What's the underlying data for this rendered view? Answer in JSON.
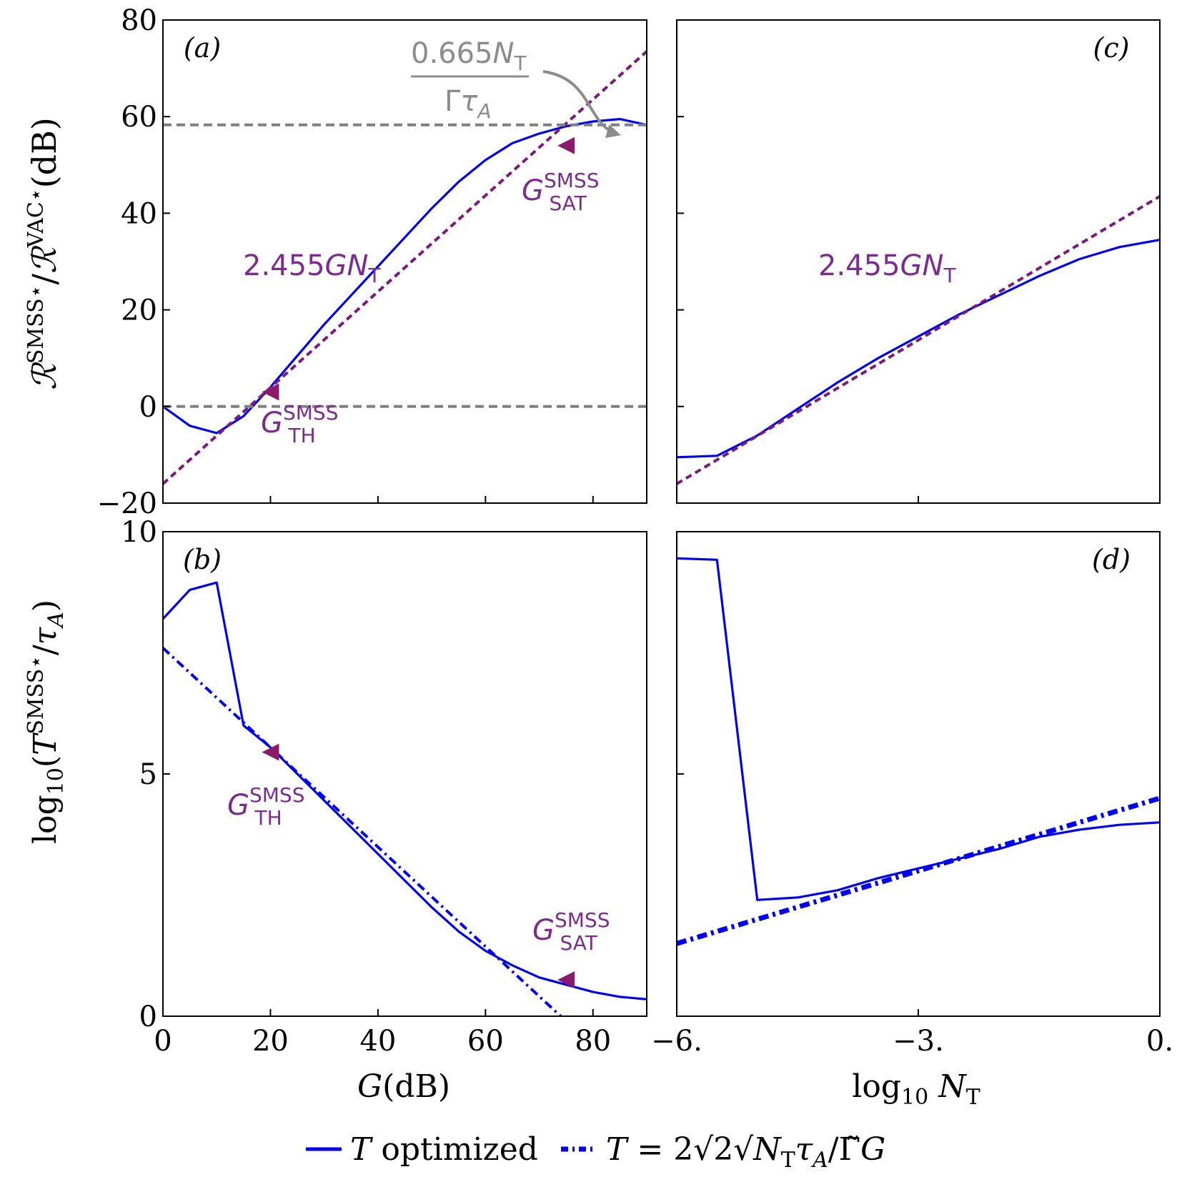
{
  "chart_data": [
    {
      "panel": "a",
      "type": "line",
      "tag": "(a)",
      "xlim": [
        0,
        90
      ],
      "ylim": [
        -20,
        80
      ],
      "yticks": [
        "-20",
        "0",
        "20",
        "40",
        "60",
        "80"
      ],
      "ylabel": "R^SMSS*/R^VAC*(dB)",
      "series": [
        {
          "name": "T optimized",
          "style": "solid-blue",
          "x": [
            0,
            5,
            10,
            15,
            20,
            25,
            30,
            35,
            40,
            45,
            50,
            55,
            60,
            65,
            70,
            75,
            80,
            85,
            90
          ],
          "y": [
            0,
            -4,
            -5.5,
            -2,
            4,
            10.5,
            17,
            23,
            29,
            35,
            41,
            46.5,
            51,
            54.5,
            56.5,
            58,
            59,
            59.5,
            58.3
          ]
        },
        {
          "name": "2.455GN_T",
          "style": "dashed-purple",
          "x": [
            0,
            90
          ],
          "y": [
            -16,
            73.5
          ]
        },
        {
          "name": "0.665N_T/Γτ_A",
          "style": "dashed-gray",
          "x": [
            0,
            90
          ],
          "y": [
            58.3,
            58.3
          ]
        },
        {
          "name": "zero",
          "style": "dashed-gray",
          "x": [
            0,
            90
          ],
          "y": [
            0,
            0
          ]
        }
      ],
      "markers": [
        {
          "label": "G_TH^SMSS",
          "x": 20,
          "y": 3
        },
        {
          "label": "G_SAT^SMSS",
          "x": 75,
          "y": 54
        }
      ],
      "annotations": {
        "line_label": "2.455GN_T",
        "sat_label": "0.665N_T / Γτ_A"
      }
    },
    {
      "panel": "b",
      "type": "line",
      "tag": "(b)",
      "xlim": [
        0,
        90
      ],
      "ylim": [
        0,
        10
      ],
      "xticks": [
        "0",
        "20",
        "40",
        "60",
        "80"
      ],
      "yticks": [
        "0",
        "5",
        "10"
      ],
      "xlabel": "G(dB)",
      "ylabel": "log10(T^SMSS*/τ_A)",
      "series": [
        {
          "name": "T optimized",
          "style": "solid-blue",
          "x": [
            0,
            5,
            10,
            15,
            20,
            25,
            30,
            35,
            40,
            45,
            50,
            55,
            60,
            65,
            70,
            75,
            80,
            85,
            90
          ],
          "y": [
            8.2,
            8.8,
            8.95,
            6.0,
            5.55,
            5.0,
            4.45,
            3.9,
            3.35,
            2.8,
            2.25,
            1.75,
            1.35,
            1.05,
            0.8,
            0.65,
            0.5,
            0.4,
            0.35
          ]
        },
        {
          "name": "T formula",
          "style": "dashdot-blue",
          "x": [
            0,
            74
          ],
          "y": [
            7.6,
            0
          ]
        }
      ],
      "markers": [
        {
          "label": "G_TH^SMSS",
          "x": 20,
          "y": 5.45
        },
        {
          "label": "G_SAT^SMSS",
          "x": 75,
          "y": 0.75
        }
      ]
    },
    {
      "panel": "c",
      "type": "line",
      "tag": "(c)",
      "xlim": [
        -6,
        0
      ],
      "ylim": [
        -20,
        80
      ],
      "series": [
        {
          "name": "T optimized",
          "style": "solid-blue",
          "x": [
            -6,
            -5.5,
            -5,
            -4.5,
            -4,
            -3.5,
            -3,
            -2.5,
            -2,
            -1.5,
            -1,
            -0.5,
            0
          ],
          "y": [
            -10.5,
            -10.2,
            -6,
            -0.5,
            5,
            10,
            14.5,
            19,
            23,
            27,
            30.5,
            33,
            34.5
          ]
        },
        {
          "name": "2.455GN_T",
          "style": "dashed-purple",
          "x": [
            -6,
            0
          ],
          "y": [
            -16,
            43.5
          ]
        }
      ],
      "annotations": {
        "line_label": "2.455GN_T"
      }
    },
    {
      "panel": "d",
      "type": "line",
      "tag": "(d)",
      "xlim": [
        -6,
        0
      ],
      "ylim": [
        0,
        10
      ],
      "xticks": [
        "-6.",
        "-3.",
        "0."
      ],
      "xlabel": "log10 N_T",
      "series": [
        {
          "name": "T optimized",
          "style": "solid-blue",
          "x": [
            -6,
            -5.5,
            -5,
            -4.5,
            -4,
            -3.5,
            -3,
            -2.5,
            -2,
            -1.5,
            -1,
            -0.5,
            0
          ],
          "y": [
            9.45,
            9.42,
            2.4,
            2.45,
            2.6,
            2.85,
            3.05,
            3.25,
            3.45,
            3.7,
            3.85,
            3.95,
            4.0
          ]
        },
        {
          "name": "T formula",
          "style": "dashdot-blue-thick",
          "x": [
            -6,
            0
          ],
          "y": [
            1.5,
            4.5
          ]
        }
      ]
    }
  ],
  "legend": {
    "items": [
      "T optimized",
      "T = 2√2√N_T τ_A / Γ̃G"
    ]
  }
}
